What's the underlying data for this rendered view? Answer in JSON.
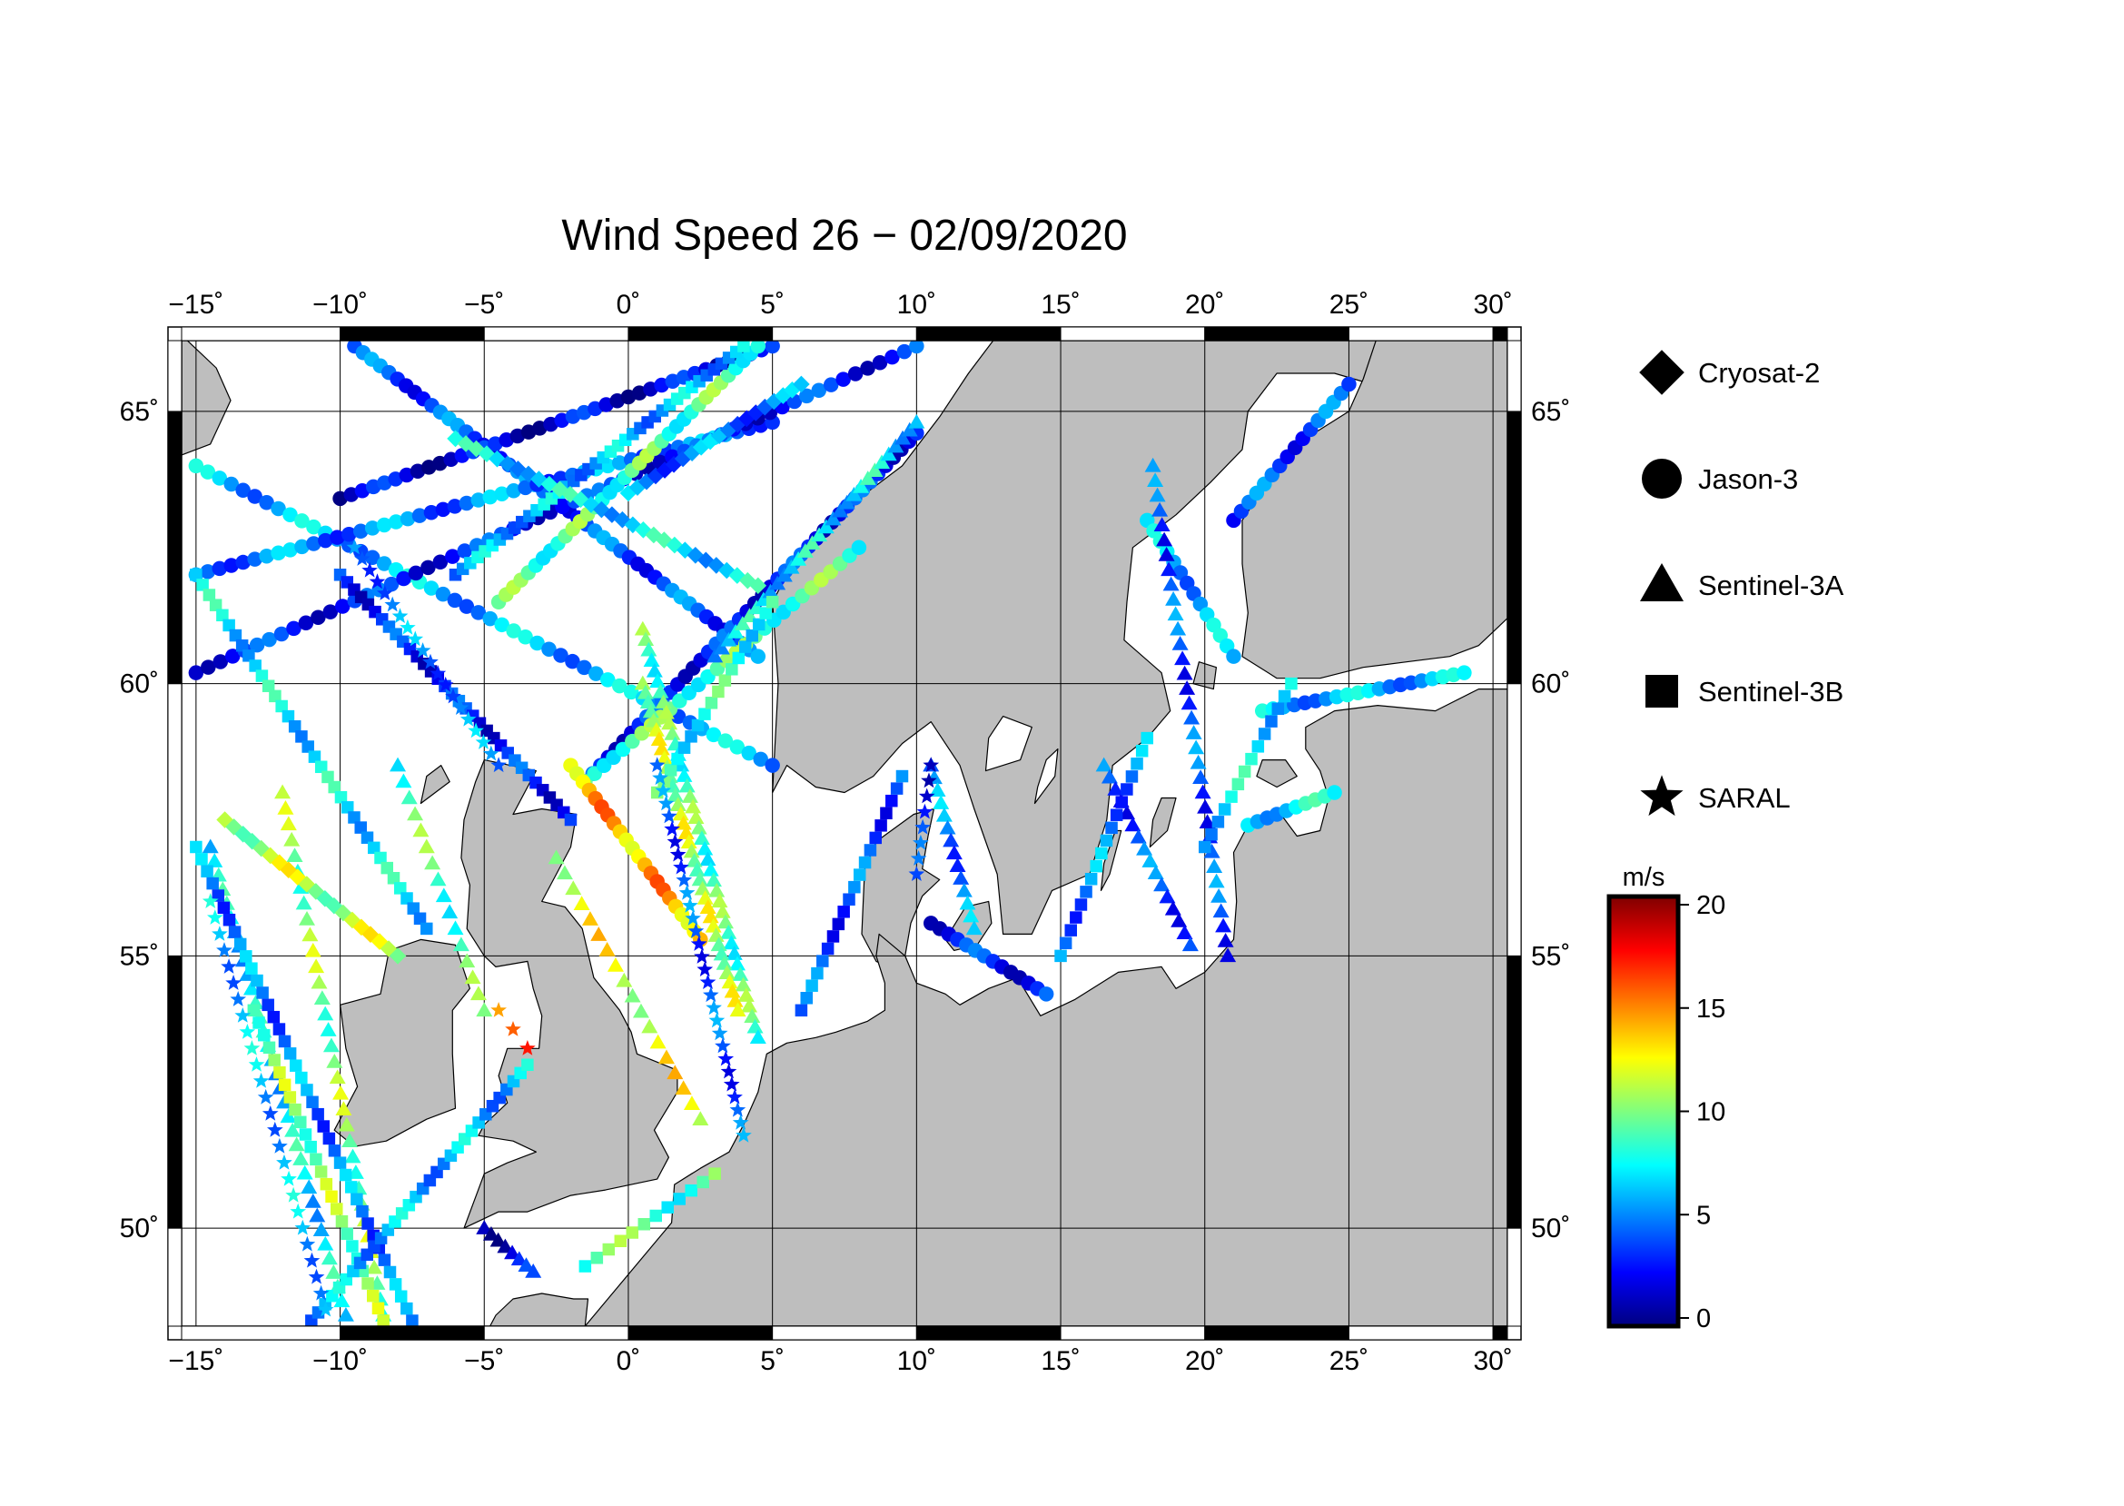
{
  "title": "Wind Speed 26 − 02/09/2020",
  "map": {
    "projection": "equirectangular",
    "lon_range": [
      -15.5,
      30.5
    ],
    "lat_range": [
      48.2,
      66.3
    ],
    "land_color": "#bebebe",
    "sea_color": "#ffffff",
    "graticule": true,
    "lon_ticks": [
      {
        "value": -15,
        "label": "−15˚"
      },
      {
        "value": -10,
        "label": "−10˚"
      },
      {
        "value": -5,
        "label": "−5˚"
      },
      {
        "value": 0,
        "label": "0˚"
      },
      {
        "value": 5,
        "label": "5˚"
      },
      {
        "value": 10,
        "label": "10˚"
      },
      {
        "value": 15,
        "label": "15˚"
      },
      {
        "value": 20,
        "label": "20˚"
      },
      {
        "value": 25,
        "label": "25˚"
      },
      {
        "value": 30,
        "label": "30˚"
      }
    ],
    "lat_ticks": [
      {
        "value": 50,
        "label": "50˚"
      },
      {
        "value": 55,
        "label": "55˚"
      },
      {
        "value": 60,
        "label": "60˚"
      },
      {
        "value": 65,
        "label": "65˚"
      }
    ]
  },
  "legend": [
    {
      "name": "Cryosat-2",
      "marker": "diamond"
    },
    {
      "name": "Jason-3",
      "marker": "circle"
    },
    {
      "name": "Sentinel-3A",
      "marker": "triangle"
    },
    {
      "name": "Sentinel-3B",
      "marker": "square"
    },
    {
      "name": "SARAL",
      "marker": "star"
    }
  ],
  "colorbar": {
    "unit": "m/s",
    "min": 0,
    "max": 20,
    "ticks": [
      {
        "value": 0,
        "label": "0"
      },
      {
        "value": 5,
        "label": "5"
      },
      {
        "value": 10,
        "label": "10"
      },
      {
        "value": 15,
        "label": "15"
      },
      {
        "value": 20,
        "label": "20"
      }
    ],
    "colors": [
      "#00007f",
      "#0000ff",
      "#007fff",
      "#00ffff",
      "#7fff7f",
      "#ffff00",
      "#ff7f00",
      "#ff0000",
      "#7f0000"
    ]
  },
  "chart_data": {
    "type": "scatter",
    "x_label": "",
    "y_label": "",
    "value_unit": "m/s",
    "tracks": [
      {
        "satellite": "Jason-3",
        "lon": [
          -9.5,
          4.5
        ],
        "lat": [
          66.2,
          60.5
        ],
        "speed": 4,
        "n": 48
      },
      {
        "satellite": "Jason-3",
        "lon": [
          -15.0,
          5.0
        ],
        "lat": [
          64.0,
          58.5
        ],
        "speed": 6,
        "n": 50
      },
      {
        "satellite": "Jason-3",
        "lon": [
          -15.0,
          5.0
        ],
        "lat": [
          62.0,
          64.8
        ],
        "speed": 5,
        "n": 50
      },
      {
        "satellite": "Jason-3",
        "lon": [
          -15.0,
          10.0
        ],
        "lat": [
          60.2,
          66.2
        ],
        "speed": 3,
        "n": 60
      },
      {
        "satellite": "Jason-3",
        "lon": [
          -10.0,
          5.0
        ],
        "lat": [
          63.4,
          66.2
        ],
        "speed": 2,
        "n": 40
      },
      {
        "satellite": "Jason-3",
        "lon": [
          -4.5,
          4.5
        ],
        "lat": [
          61.5,
          66.2
        ],
        "speed": 9,
        "n": 36
      },
      {
        "satellite": "Jason-3",
        "lon": [
          -1.5,
          10.0
        ],
        "lat": [
          58.2,
          64.6
        ],
        "speed": 3,
        "n": 44
      },
      {
        "satellite": "Jason-3",
        "lon": [
          -1.5,
          8.0
        ],
        "lat": [
          58.2,
          62.5
        ],
        "speed": 9,
        "n": 30
      },
      {
        "satellite": "Jason-3",
        "lon": [
          -2.0,
          2.5
        ],
        "lat": [
          58.5,
          55.3
        ],
        "speed": 14,
        "n": 22
      },
      {
        "satellite": "Jason-3",
        "lon": [
          21.0,
          25.0
        ],
        "lat": [
          63.0,
          65.5
        ],
        "speed": 4,
        "n": 16
      },
      {
        "satellite": "Jason-3",
        "lon": [
          18.0,
          21.0
        ],
        "lat": [
          63.0,
          60.5
        ],
        "speed": 6,
        "n": 14
      },
      {
        "satellite": "Jason-3",
        "lon": [
          22.0,
          29.0
        ],
        "lat": [
          59.5,
          60.2
        ],
        "speed": 6,
        "n": 20
      },
      {
        "satellite": "Jason-3",
        "lon": [
          21.5,
          24.5
        ],
        "lat": [
          57.4,
          58.0
        ],
        "speed": 7,
        "n": 10
      },
      {
        "satellite": "Jason-3",
        "lon": [
          10.5,
          14.5
        ],
        "lat": [
          55.6,
          54.3
        ],
        "speed": 3,
        "n": 14
      },
      {
        "satellite": "Sentinel-3A",
        "lon": [
          -14.5,
          -9.8
        ],
        "lat": [
          57.0,
          48.4
        ],
        "speed": 7,
        "n": 34
      },
      {
        "satellite": "Sentinel-3A",
        "lon": [
          -12.0,
          -8.5
        ],
        "lat": [
          58.0,
          48.4
        ],
        "speed": 10,
        "n": 34
      },
      {
        "satellite": "Sentinel-3A",
        "lon": [
          0.5,
          4.5
        ],
        "lat": [
          61.0,
          53.5
        ],
        "speed": 9,
        "n": 40
      },
      {
        "satellite": "Sentinel-3A",
        "lon": [
          0.5,
          3.8
        ],
        "lat": [
          60.0,
          54.0
        ],
        "speed": 11,
        "n": 36
      },
      {
        "satellite": "Sentinel-3A",
        "lon": [
          3.0,
          10.0
        ],
        "lat": [
          60.5,
          64.8
        ],
        "speed": 7,
        "n": 30
      },
      {
        "satellite": "Sentinel-3A",
        "lon": [
          10.5,
          12.0
        ],
        "lat": [
          58.5,
          55.5
        ],
        "speed": 5,
        "n": 14
      },
      {
        "satellite": "Sentinel-3A",
        "lon": [
          18.2,
          20.8
        ],
        "lat": [
          64.0,
          55.0
        ],
        "speed": 4,
        "n": 34
      },
      {
        "satellite": "Sentinel-3A",
        "lon": [
          16.5,
          19.5
        ],
        "lat": [
          58.5,
          55.2
        ],
        "speed": 4,
        "n": 16
      },
      {
        "satellite": "Sentinel-3A",
        "lon": [
          -5.0,
          -3.3
        ],
        "lat": [
          50.0,
          49.2
        ],
        "speed": 2,
        "n": 8
      },
      {
        "satellite": "Sentinel-3A",
        "lon": [
          -8.0,
          -5.0
        ],
        "lat": [
          58.5,
          54.0
        ],
        "speed": 9,
        "n": 16
      },
      {
        "satellite": "Sentinel-3B",
        "lon": [
          -15.0,
          -7.0
        ],
        "lat": [
          62.0,
          55.5
        ],
        "speed": 7,
        "n": 36
      },
      {
        "satellite": "Sentinel-3B",
        "lon": [
          -15.0,
          -7.5
        ],
        "lat": [
          57.0,
          48.3
        ],
        "speed": 5,
        "n": 40
      },
      {
        "satellite": "Sentinel-3B",
        "lon": [
          -10.0,
          -2.0
        ],
        "lat": [
          62.0,
          57.5
        ],
        "speed": 3,
        "n": 34
      },
      {
        "satellite": "Sentinel-3B",
        "lon": [
          -13.0,
          -8.5
        ],
        "lat": [
          54.0,
          48.3
        ],
        "speed": 10,
        "n": 26
      },
      {
        "satellite": "Sentinel-3B",
        "lon": [
          -11.0,
          -3.5
        ],
        "lat": [
          48.3,
          53.0
        ],
        "speed": 6,
        "n": 32
      },
      {
        "satellite": "Sentinel-3B",
        "lon": [
          6.0,
          9.5
        ],
        "lat": [
          54.0,
          58.3
        ],
        "speed": 4,
        "n": 20
      },
      {
        "satellite": "Sentinel-3B",
        "lon": [
          1.0,
          5.0
        ],
        "lat": [
          58.0,
          61.5
        ],
        "speed": 8,
        "n": 18
      },
      {
        "satellite": "Sentinel-3B",
        "lon": [
          15.0,
          18.0
        ],
        "lat": [
          55.0,
          59.0
        ],
        "speed": 5,
        "n": 18
      },
      {
        "satellite": "Sentinel-3B",
        "lon": [
          20.0,
          23.0
        ],
        "lat": [
          57.0,
          60.0
        ],
        "speed": 7,
        "n": 14
      },
      {
        "satellite": "Sentinel-3B",
        "lon": [
          -6.0,
          4.0
        ],
        "lat": [
          62.0,
          66.2
        ],
        "speed": 6,
        "n": 40
      },
      {
        "satellite": "SARAL",
        "lon": [
          1.0,
          4.0
        ],
        "lat": [
          58.5,
          51.7
        ],
        "speed": 4,
        "n": 30
      },
      {
        "satellite": "SARAL",
        "lon": [
          -14.5,
          -10.5
        ],
        "lat": [
          56.0,
          48.5
        ],
        "speed": 6,
        "n": 26
      },
      {
        "satellite": "SARAL",
        "lon": [
          -9.5,
          -4.5
        ],
        "lat": [
          62.5,
          58.5
        ],
        "speed": 5,
        "n": 20
      },
      {
        "satellite": "SARAL",
        "lon": [
          10.5,
          10.0
        ],
        "lat": [
          58.5,
          56.5
        ],
        "speed": 3,
        "n": 8
      },
      {
        "satellite": "SARAL",
        "lon": [
          -4.5,
          -3.5
        ],
        "lat": [
          54.0,
          53.3
        ],
        "speed": 16,
        "n": 3
      },
      {
        "satellite": "Cryosat-2",
        "lon": [
          -6.0,
          4.5
        ],
        "lat": [
          64.5,
          61.8
        ],
        "speed": 7,
        "n": 30
      },
      {
        "satellite": "Cryosat-2",
        "lon": [
          0.0,
          6.0
        ],
        "lat": [
          63.5,
          65.5
        ],
        "speed": 5,
        "n": 20
      },
      {
        "satellite": "Cryosat-2",
        "lon": [
          -14.0,
          -8.0
        ],
        "lat": [
          57.5,
          55.0
        ],
        "speed": 11,
        "n": 20
      },
      {
        "satellite": "Sentinel-3A",
        "lon": [
          -2.5,
          2.5
        ],
        "lat": [
          56.8,
          52.0
        ],
        "speed": 12,
        "n": 18
      },
      {
        "satellite": "Sentinel-3B",
        "lon": [
          -1.5,
          3.0
        ],
        "lat": [
          49.3,
          51.0
        ],
        "speed": 9,
        "n": 12
      }
    ]
  }
}
